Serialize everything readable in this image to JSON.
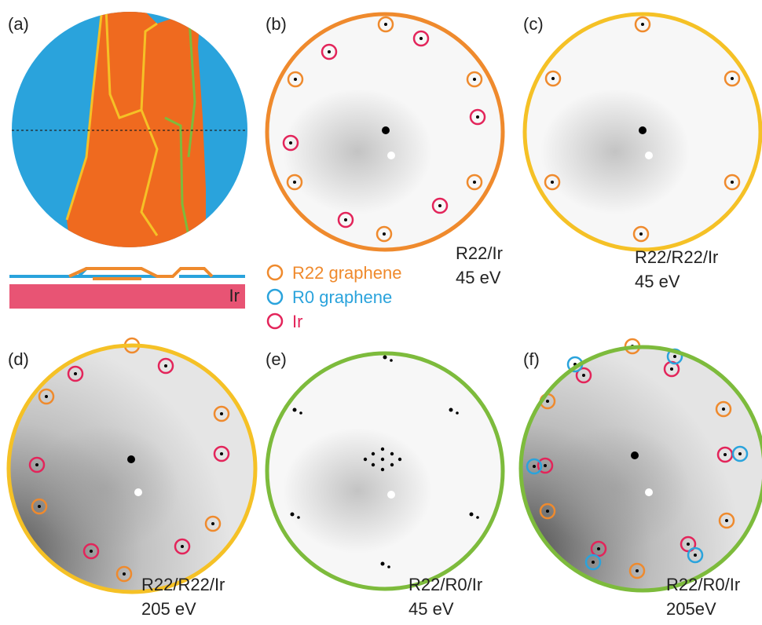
{
  "panels": [
    {
      "label": "(a)"
    },
    {
      "label": "(b)",
      "caption": [
        "R22/Ir",
        "45 eV"
      ],
      "border_color": "#ef8a2d"
    },
    {
      "label": "(c)",
      "caption": [
        "R22/R22/Ir",
        "45 eV"
      ],
      "border_color": "#f5c126"
    },
    {
      "label": "(d)",
      "caption": [
        "R22/R22/Ir",
        "205 eV"
      ],
      "border_color": "#f5c126"
    },
    {
      "label": "(e)",
      "caption": [
        "R22/R0/Ir",
        "45 eV"
      ],
      "border_color": "#7dbb3c"
    },
    {
      "label": "(f)",
      "caption": [
        "R22/R0/Ir",
        "205eV"
      ],
      "border_color": "#7dbb3c"
    }
  ],
  "schematic": {
    "substrate_label": "Ir"
  },
  "legend": [
    {
      "text": "R22 graphene",
      "color": "#ef8a2d"
    },
    {
      "text": "R0 graphene",
      "color": "#2aa3dc"
    },
    {
      "text": "Ir",
      "color": "#e3245a"
    }
  ]
}
